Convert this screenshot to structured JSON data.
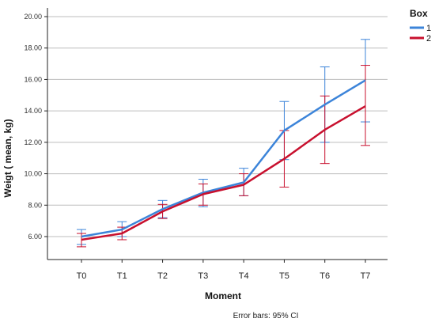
{
  "chart_data": {
    "type": "line",
    "xlabel": "Moment",
    "ylabel": "Weigt ( mean, kg)",
    "categories": [
      "T0",
      "T1",
      "T2",
      "T3",
      "T4",
      "T5",
      "T6",
      "T7"
    ],
    "ylim": [
      5.0,
      20.0
    ],
    "yticks": [
      "6.00",
      "8.00",
      "10.00",
      "12.00",
      "14.00",
      "16.00",
      "18.00",
      "20.00"
    ],
    "grid": "horizontal",
    "legend": {
      "title": "Box",
      "position": "top-right"
    },
    "error_bars_note": "Error bars: 95% CI",
    "series": [
      {
        "name": "1",
        "color": "#3c84d9",
        "values": [
          6.0,
          6.45,
          7.75,
          8.8,
          9.45,
          12.75,
          14.4,
          15.95
        ],
        "ci_low": [
          5.5,
          6.0,
          7.2,
          7.9,
          8.6,
          10.9,
          12.0,
          13.3
        ],
        "ci_high": [
          6.45,
          6.95,
          8.3,
          9.65,
          10.35,
          14.6,
          16.8,
          18.55
        ]
      },
      {
        "name": "2",
        "color": "#c8102e",
        "values": [
          5.8,
          6.2,
          7.6,
          8.7,
          9.3,
          10.95,
          12.8,
          14.3
        ],
        "ci_low": [
          5.35,
          5.8,
          7.15,
          8.0,
          8.6,
          9.15,
          10.65,
          11.8
        ],
        "ci_high": [
          6.2,
          6.6,
          8.05,
          9.35,
          10.0,
          12.75,
          14.95,
          16.9
        ]
      }
    ]
  }
}
